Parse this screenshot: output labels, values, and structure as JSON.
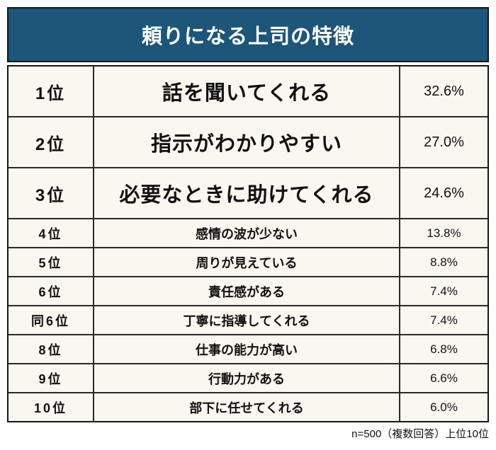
{
  "title": "頼りになる上司の特徴",
  "footer_note": "n=500（複数回答）上位10位",
  "colors": {
    "header_bg": "#1d5678",
    "header_text": "#ffffff",
    "cell_bg": "#faf6f0",
    "border": "#1a1a1a",
    "text": "#111111"
  },
  "table": {
    "rows": [
      {
        "rank": "1位",
        "feature": "話を聞いてくれる",
        "percent": "32.6%"
      },
      {
        "rank": "2位",
        "feature": "指示がわかりやすい",
        "percent": "27.0%"
      },
      {
        "rank": "3位",
        "feature": "必要なときに助けてくれる",
        "percent": "24.6%"
      },
      {
        "rank": "4位",
        "feature": "感情の波が少ない",
        "percent": "13.8%"
      },
      {
        "rank": "5位",
        "feature": "周りが見えている",
        "percent": "8.8%"
      },
      {
        "rank": "6位",
        "feature": "責任感がある",
        "percent": "7.4%"
      },
      {
        "rank": "同6位",
        "feature": "丁寧に指導してくれる",
        "percent": "7.4%"
      },
      {
        "rank": "8位",
        "feature": "仕事の能力が高い",
        "percent": "6.8%"
      },
      {
        "rank": "9位",
        "feature": "行動力がある",
        "percent": "6.6%"
      },
      {
        "rank": "10位",
        "feature": "部下に任せてくれる",
        "percent": "6.0%"
      }
    ]
  },
  "chart_data": {
    "type": "table",
    "title": "頼りになる上司の特徴",
    "ranks": [
      "1位",
      "2位",
      "3位",
      "4位",
      "5位",
      "6位",
      "同6位",
      "8位",
      "9位",
      "10位"
    ],
    "categories": [
      "話を聞いてくれる",
      "指示がわかりやすい",
      "必要なときに助けてくれる",
      "感情の波が少ない",
      "周りが見えている",
      "責任感がある",
      "丁寧に指導してくれる",
      "仕事の能力が高い",
      "行動力がある",
      "部下に任せてくれる"
    ],
    "values": [
      32.6,
      27.0,
      24.6,
      13.8,
      8.8,
      7.4,
      7.4,
      6.8,
      6.6,
      6.0
    ],
    "unit": "%",
    "note": "n=500（複数回答）上位10位",
    "layout": "ranking table, top 3 rows emphasized with larger bold text"
  }
}
